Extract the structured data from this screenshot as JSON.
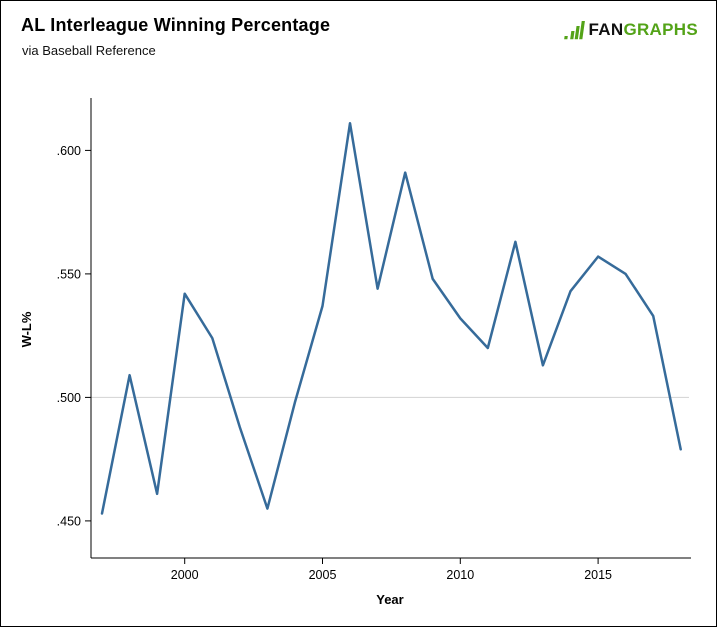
{
  "header": {
    "title": "AL Interleague Winning Percentage",
    "subtitle": "via Baseball Reference"
  },
  "logo": {
    "prefix": "FAN",
    "suffix": "GRAPHS",
    "green": "#53a318",
    "dark": "#111111"
  },
  "chart_data": {
    "type": "line",
    "title": "AL Interleague Winning Percentage",
    "subtitle": "via Baseball Reference",
    "xlabel": "Year",
    "ylabel": "W-L%",
    "series_name": "AL Interleague winning percentage",
    "x": [
      1997,
      1998,
      1999,
      2000,
      2001,
      2002,
      2003,
      2004,
      2005,
      2006,
      2007,
      2008,
      2009,
      2010,
      2011,
      2012,
      2013,
      2014,
      2015,
      2016,
      2017,
      2018
    ],
    "values": [
      0.453,
      0.509,
      0.461,
      0.542,
      0.524,
      0.488,
      0.455,
      0.498,
      0.537,
      0.611,
      0.544,
      0.591,
      0.548,
      0.532,
      0.52,
      0.563,
      0.513,
      0.543,
      0.557,
      0.55,
      0.533,
      0.479
    ],
    "xlim": [
      1996.6,
      2018.3
    ],
    "ylim": [
      0.435,
      0.62
    ],
    "yticks": {
      "values": [
        0.45,
        0.5,
        0.55,
        0.6
      ],
      "labels": [
        ".450",
        ".500",
        ".550",
        ".600"
      ]
    },
    "xticks": {
      "values": [
        2000,
        2005,
        2010,
        2015
      ],
      "labels": [
        "2000",
        "2005",
        "2010",
        "2015"
      ]
    },
    "gridlines": [
      0.5
    ],
    "grid_on": true,
    "legend": "none",
    "line_color": "#366b9a",
    "grid_color": "#d3d3d3",
    "axis_color": "#000000"
  }
}
